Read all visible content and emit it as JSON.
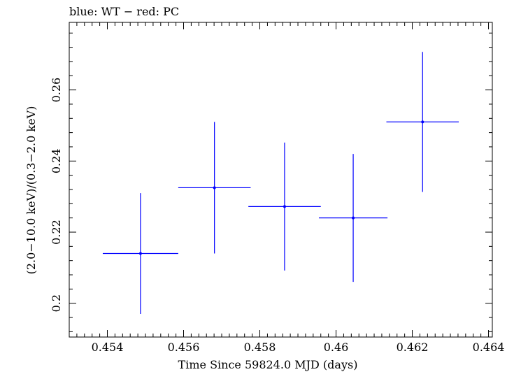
{
  "chart_data": {
    "type": "scatter",
    "title": "blue: WT − red: PC",
    "xlabel": "Time Since 59824.0 MJD (days)",
    "ylabel": "(2.0−10.0 keV)/(0.3−2.0 keV)",
    "xlim": [
      0.453,
      0.4641
    ],
    "ylim": [
      0.1905,
      0.279
    ],
    "xticks": [
      {
        "value": 0.454,
        "label": "0.454"
      },
      {
        "value": 0.456,
        "label": "0.456"
      },
      {
        "value": 0.458,
        "label": "0.458"
      },
      {
        "value": 0.46,
        "label": "0.46"
      },
      {
        "value": 0.462,
        "label": "0.462"
      },
      {
        "value": 0.464,
        "label": "0.464"
      }
    ],
    "yticks": [
      {
        "value": 0.2,
        "label": "0.2"
      },
      {
        "value": 0.22,
        "label": "0.22"
      },
      {
        "value": 0.24,
        "label": "0.24"
      },
      {
        "value": 0.26,
        "label": "0.26"
      }
    ],
    "grid": false,
    "series": [
      {
        "color": "#0000ff",
        "points": [
          {
            "x": 0.45487,
            "xerr": 0.00099,
            "y": 0.214,
            "yerr": 0.017
          },
          {
            "x": 0.45681,
            "xerr": 0.00095,
            "y": 0.2325,
            "yerr": 0.0185
          },
          {
            "x": 0.45865,
            "xerr": 0.00095,
            "y": 0.2272,
            "yerr": 0.018
          },
          {
            "x": 0.46045,
            "xerr": 0.0009,
            "y": 0.224,
            "yerr": 0.018
          },
          {
            "x": 0.46227,
            "xerr": 0.00095,
            "y": 0.251,
            "yerr": 0.0197
          }
        ]
      }
    ]
  }
}
